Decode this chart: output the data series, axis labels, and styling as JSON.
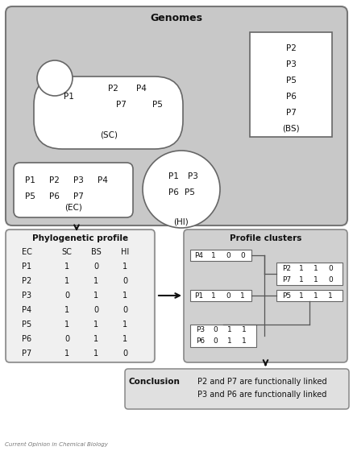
{
  "title": "Genomes",
  "profile_clusters_title": "Profile clusters",
  "conclusion_lines": [
    "P2 and P7 are functionally linked",
    "P3 and P6 are functionally linked"
  ],
  "bs_proteins": [
    "P2",
    "P3",
    "P5",
    "P6",
    "P7"
  ],
  "profile_header": [
    "EC",
    "SC",
    "BS",
    "HI"
  ],
  "profile_data": [
    [
      "P1",
      "1",
      "0",
      "1"
    ],
    [
      "P2",
      "1",
      "1",
      "0"
    ],
    [
      "P3",
      "0",
      "1",
      "1"
    ],
    [
      "P4",
      "1",
      "0",
      "0"
    ],
    [
      "P5",
      "1",
      "1",
      "1"
    ],
    [
      "P6",
      "0",
      "1",
      "1"
    ],
    [
      "P7",
      "1",
      "1",
      "0"
    ]
  ],
  "genome_bg": "#c8c8c8",
  "genome_grad_top": "#b8b8b8",
  "profile_bg": "#e0e0e0",
  "clusters_bg": "#c8c8c8",
  "conclusion_bg": "#d8d8d8",
  "white": "#ffffff",
  "border": "#888888",
  "text": "#111111",
  "figsize": [
    4.38,
    5.65
  ],
  "dpi": 100
}
